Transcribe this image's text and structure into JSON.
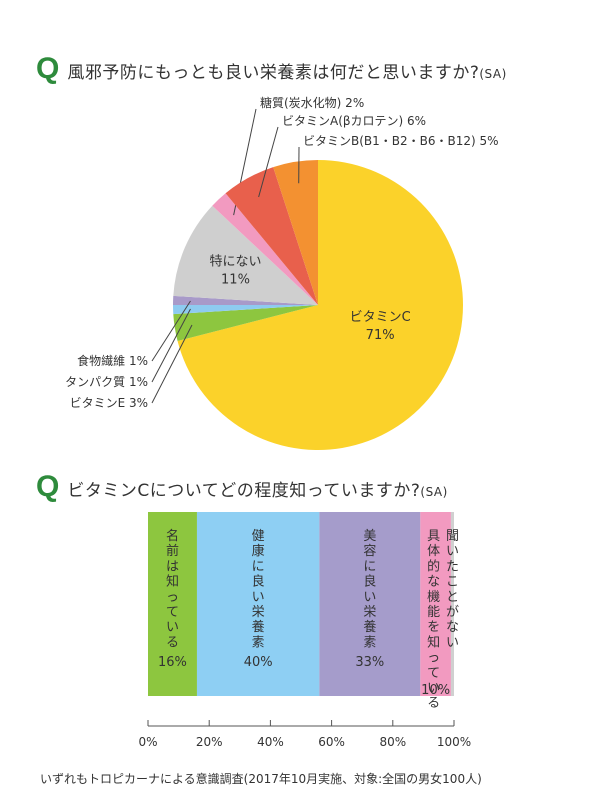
{
  "question1": {
    "mark": "Q",
    "text": "風邪予防にもっとも良い栄養素は何だと思いますか?",
    "suffix": "(SA)"
  },
  "question2": {
    "mark": "Q",
    "text": "ビタミンCについてどの程度知っていますか?",
    "suffix": "(SA)"
  },
  "footer": "いずれもトロピカーナによる意識調査(2017年10月実施、対象:全国の男女100人)",
  "chart_data": [
    {
      "type": "pie",
      "slices": [
        {
          "label": "ビタミンC",
          "value": 71,
          "display": "71%",
          "color": "#fbd22a",
          "label_style": "inside"
        },
        {
          "label": "ビタミンE",
          "value": 3,
          "display": "3%",
          "text": "ビタミンE 3%",
          "color": "#8dc63f",
          "label_style": "left"
        },
        {
          "label": "タンパク質",
          "value": 1,
          "display": "1%",
          "text": "タンパク質 1%",
          "color": "#8ecbf0",
          "label_style": "left"
        },
        {
          "label": "食物繊維",
          "value": 1,
          "display": "1%",
          "text": "食物繊維 1%",
          "color": "#a89ac9",
          "label_style": "left"
        },
        {
          "label": "特にない",
          "value": 11,
          "display": "11%",
          "color": "#cfcfcf",
          "label_style": "inside"
        },
        {
          "label": "糖質(炭水化物)",
          "value": 2,
          "display": "2%",
          "text": "糖質(炭水化物) 2%",
          "color": "#f29ac0",
          "label_style": "top"
        },
        {
          "label": "ビタミンA(βカロテン)",
          "value": 6,
          "display": "6%",
          "text": "ビタミンA(βカロテン) 6%",
          "color": "#e8604c",
          "label_style": "top"
        },
        {
          "label": "ビタミンB(B1・B2・B6・B12)",
          "value": 5,
          "display": "5%",
          "text": "ビタミンB(B1・B2・B6・B12) 5%",
          "color": "#f39131",
          "label_style": "top"
        }
      ]
    },
    {
      "type": "bar",
      "orientation": "horizontal-stacked",
      "segments": [
        {
          "label": "名前は知っている",
          "value": 16,
          "display": "16%",
          "color": "#8dc63f"
        },
        {
          "label": "健康に良い栄養素",
          "value": 40,
          "display": "40%",
          "color": "#8ecff3"
        },
        {
          "label": "美容に良い栄養素",
          "value": 33,
          "display": "33%",
          "color": "#a59ccb"
        },
        {
          "label": "具体的な機能を知っている",
          "value": 10,
          "display": "10%",
          "color": "#f29ac0"
        },
        {
          "label": "聞いたことがない",
          "value": 1,
          "display": "",
          "color": "#d0d0d0"
        }
      ],
      "xticks": [
        "0%",
        "20%",
        "40%",
        "60%",
        "80%",
        "100%"
      ],
      "xlim": [
        0,
        100
      ]
    }
  ]
}
